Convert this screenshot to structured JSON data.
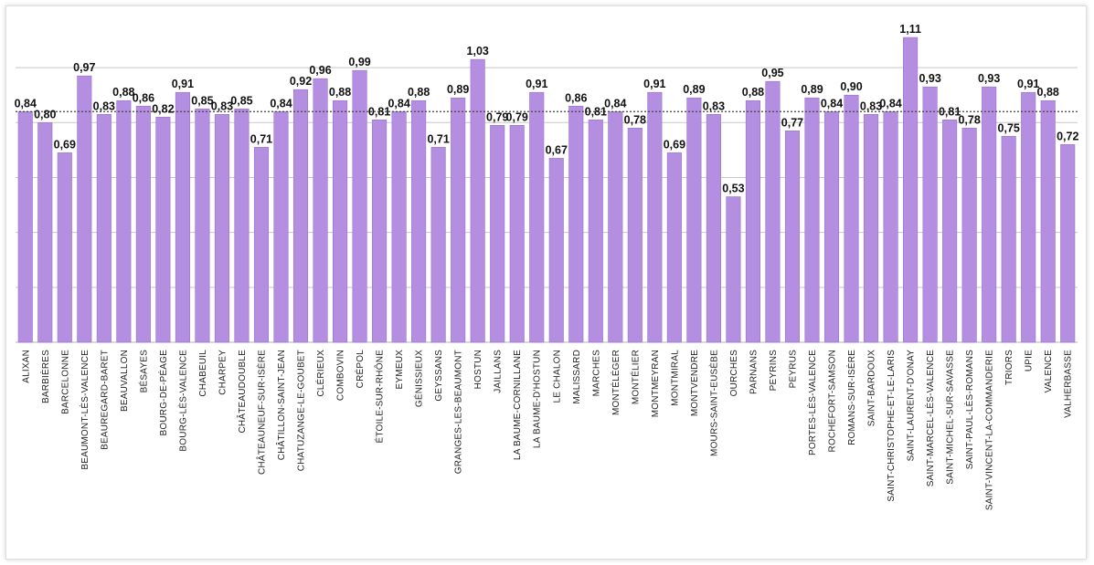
{
  "chart_data": {
    "type": "bar",
    "categories": [
      "ALIXAN",
      "BARBIÈRES",
      "BARCELONNE",
      "BEAUMONT-LÈS-VALENCE",
      "BEAUREGARD-BARET",
      "BEAUVALLON",
      "BÉSAYES",
      "BOURG-DE-PÉAGE",
      "BOURG-LÈS-VALENCE",
      "CHABEUIL",
      "CHARPEY",
      "CHÂTEAUDOUBLE",
      "CHÂTEAUNEUF-SUR-ISÈRE",
      "CHÂTILLON-SAINT-JEAN",
      "CHATUZANGE-LE-GOUBET",
      "CLÉRIEUX",
      "COMBOVIN",
      "CRÉPOL",
      "ÉTOILE-SUR-RHÔNE",
      "EYMEUX",
      "GÉNISSIEUX",
      "GEYSSANS",
      "GRANGES-LES-BEAUMONT",
      "HOSTUN",
      "JAILLANS",
      "LA BAUME-CORNILLANE",
      "LA BAUME-D'HOSTUN",
      "LE CHALON",
      "MALISSARD",
      "MARCHES",
      "MONTÉLÉGER",
      "MONTÉLIER",
      "MONTMEYRAN",
      "MONTMIRAL",
      "MONTVENDRE",
      "MOURS-SAINT-EUSÈBE",
      "OURCHES",
      "PARNANS",
      "PEYRINS",
      "PEYRUS",
      "PORTES-LÈS-VALENCE",
      "ROCHEFORT-SAMSON",
      "ROMANS-SUR-ISÈRE",
      "SAINT-BARDOUX",
      "SAINT-CHRISTOPHE-ET-LE-LARIS",
      "SAINT-LAURENT-D'ONAY",
      "SAINT-MARCEL-LÈS-VALENCE",
      "SAINT-MICHEL-SUR-SAVASSE",
      "SAINT-PAUL-LÈS-ROMANS",
      "SAINT-VINCENT-LA-COMMANDERIE",
      "TRIORS",
      "UPIE",
      "VALENCE",
      "VALHERBASSE"
    ],
    "values": [
      0.84,
      0.8,
      0.69,
      0.97,
      0.83,
      0.88,
      0.86,
      0.82,
      0.91,
      0.85,
      0.83,
      0.85,
      0.71,
      0.84,
      0.92,
      0.96,
      0.88,
      0.99,
      0.81,
      0.84,
      0.88,
      0.71,
      0.89,
      1.03,
      0.79,
      0.79,
      0.91,
      0.67,
      0.86,
      0.81,
      0.84,
      0.78,
      0.91,
      0.69,
      0.89,
      0.83,
      0.53,
      0.88,
      0.95,
      0.77,
      0.89,
      0.84,
      0.9,
      0.83,
      0.84,
      1.11,
      0.93,
      0.81,
      0.78,
      0.93,
      0.75,
      0.91,
      0.88,
      0.72
    ],
    "value_labels": [
      "0,84",
      "0,80",
      "0,69",
      "0,97",
      "0,83",
      "0,88",
      "0,86",
      "0,82",
      "0,91",
      "0,85",
      "0,83",
      "0,85",
      "0,71",
      "0,84",
      "0,92",
      "0,96",
      "0,88",
      "0,99",
      "0,81",
      "0,84",
      "0,88",
      "0,71",
      "0,89",
      "1,03",
      "0,79",
      "0,79",
      "0,91",
      "0,67",
      "0,86",
      "0,81",
      "0,84",
      "0,78",
      "0,91",
      "0,69",
      "0,89",
      "0,83",
      "0,53",
      "0,88",
      "0,95",
      "0,77",
      "0,89",
      "0,84",
      "0,90",
      "0,83",
      "0,84",
      "1,11",
      "0,93",
      "0,81",
      "0,78",
      "0,93",
      "0,75",
      "0,91",
      "0,88",
      "0,72"
    ],
    "reference_line": 0.84,
    "ylim": [
      0,
      1.15
    ],
    "gridlines": [
      0.2,
      0.4,
      0.6,
      0.8,
      1.0
    ],
    "grid": true,
    "title": "",
    "xlabel": "",
    "ylabel": "",
    "colors": {
      "bar": "#b48ee0",
      "bar_edge": "#9a72cf",
      "grid": "#c8c8c8",
      "reference": "#444444"
    }
  }
}
